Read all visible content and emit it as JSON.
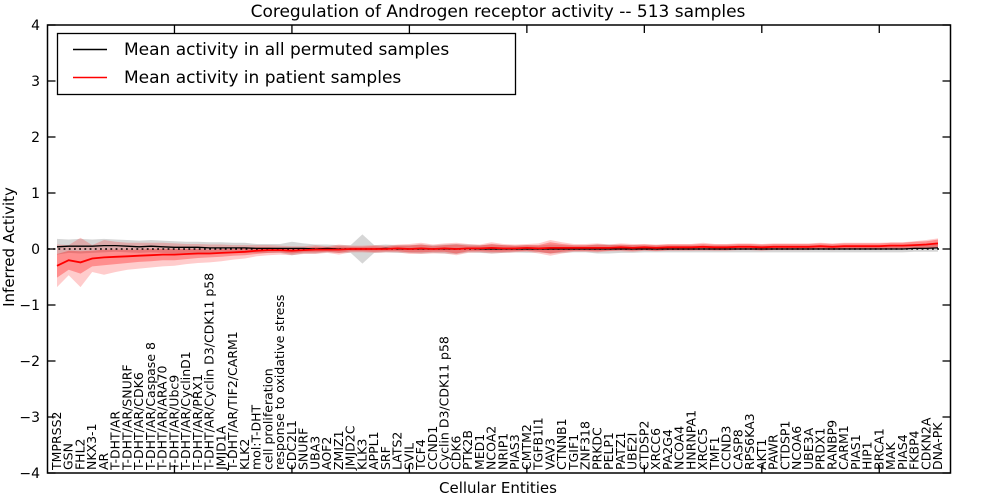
{
  "title": "Coregulation of Androgen receptor activity -- 513 samples",
  "colors": {
    "permuted_line": "#000000",
    "patient_line": "#ff0000",
    "permuted_band": "#000000",
    "patient_band": "#ff0000",
    "zero_line": "#000000",
    "background": "#ffffff"
  },
  "chart_data": {
    "type": "line",
    "title": "Coregulation of Androgen receptor activity -- 513 samples",
    "xlabel": "Cellular Entities",
    "ylabel": "Inferred Activity",
    "ylim": [
      -4,
      4
    ],
    "yticks": [
      4,
      3,
      2,
      1,
      0,
      -1,
      -2,
      -3,
      -4
    ],
    "grid": false,
    "legend_position": "upper left",
    "zero_reference_line": 0,
    "categories": [
      "TMPRSS2",
      "GSN",
      "FHL2",
      "NKX3-1",
      "AR",
      "T-DHT/AR",
      "T-DHT/AR/SNURF",
      "T-DHT/AR/CDK6",
      "T-DHT/AR/Caspase 8",
      "T-DHT/AR/ARA70",
      "T-DHT/AR/Ubc9",
      "T-DHT/AR/CyclinD1",
      "T-DHT/AR/PRX1",
      "T-DHT/AR/Cyclin D3/CDK11 p58",
      "JMJD1A",
      "T-DHT/AR/TIF2/CARM1",
      "KLK2",
      "mol:T-DHT",
      "cell proliferation",
      "response to oxidative stress",
      "CDC2L1",
      "SNURF",
      "UBA3",
      "AOF2",
      "ZMIZ1",
      "JMJD2C",
      "KLK3",
      "APPL1",
      "SRF",
      "LATS2",
      "SVIL",
      "TCF4",
      "CCND1",
      "Cyclin D3/CDK11 p58",
      "CDK6",
      "PTK2B",
      "MED1",
      "NCOA2",
      "NRIP1",
      "PIAS3",
      "CMTM2",
      "TGFB1I1",
      "VAV3",
      "CTNNB1",
      "TGIF1",
      "ZNF318",
      "PRKDC",
      "PELP1",
      "PATZ1",
      "UBE2I",
      "CTDSP2",
      "XRCC6",
      "PA2G4",
      "NCOA4",
      "HNRNPA1",
      "XRCC5",
      "TMF1",
      "CCND3",
      "CASP8",
      "RPS6KA3",
      "AKT1",
      "PAWR",
      "CTDSP1",
      "NCOA6",
      "UBE3A",
      "PRDX1",
      "RANBP9",
      "CARM1",
      "PIAS1",
      "HIP1",
      "BRCA1",
      "MAK",
      "PIAS4",
      "FKBP4",
      "CDKN2A",
      "DNA-PK"
    ],
    "series": [
      {
        "name": "Mean activity in all permuted samples",
        "color": "#000000",
        "values": [
          0.04,
          0.05,
          0.05,
          0.05,
          0.06,
          0.06,
          0.05,
          0.04,
          0.05,
          0.04,
          0.03,
          0.03,
          0.03,
          0.02,
          0.02,
          0.02,
          0.02,
          0.01,
          0.01,
          0.01,
          0.01,
          0.01,
          0.0,
          0.01,
          0.0,
          0.0,
          0.0,
          0.0,
          0.01,
          0.0,
          0.0,
          0.0,
          0.0,
          0.0,
          0.0,
          0.01,
          0.0,
          0.0,
          0.0,
          0.0,
          0.0,
          0.0,
          0.0,
          0.0,
          0.0,
          0.0,
          0.0,
          0.0,
          0.0,
          0.0,
          0.0,
          0.0,
          0.0,
          0.0,
          0.0,
          0.0,
          0.0,
          0.0,
          0.0,
          0.0,
          0.0,
          0.0,
          0.0,
          0.0,
          0.0,
          0.0,
          0.0,
          0.0,
          0.0,
          0.0,
          0.0,
          0.0,
          0.0,
          0.01,
          0.01,
          0.02
        ],
        "band_halfwidth": [
          0.14,
          0.12,
          0.13,
          0.12,
          0.12,
          0.11,
          0.11,
          0.11,
          0.11,
          0.11,
          0.11,
          0.1,
          0.1,
          0.1,
          0.1,
          0.09,
          0.09,
          0.08,
          0.08,
          0.08,
          0.12,
          0.09,
          0.08,
          0.07,
          0.07,
          0.07,
          0.26,
          0.07,
          0.07,
          0.07,
          0.07,
          0.08,
          0.07,
          0.08,
          0.09,
          0.07,
          0.07,
          0.08,
          0.07,
          0.06,
          0.07,
          0.06,
          0.08,
          0.07,
          0.06,
          0.06,
          0.08,
          0.08,
          0.07,
          0.07,
          0.06,
          0.06,
          0.06,
          0.06,
          0.06,
          0.06,
          0.06,
          0.06,
          0.06,
          0.06,
          0.06,
          0.06,
          0.06,
          0.06,
          0.06,
          0.06,
          0.06,
          0.06,
          0.06,
          0.06,
          0.06,
          0.06,
          0.06,
          0.06,
          0.06,
          0.07
        ],
        "band_opacity": 0.16
      },
      {
        "name": "Mean activity in patient samples",
        "color": "#ff0000",
        "values": [
          -0.3,
          -0.2,
          -0.24,
          -0.17,
          -0.15,
          -0.14,
          -0.13,
          -0.12,
          -0.11,
          -0.1,
          -0.1,
          -0.09,
          -0.08,
          -0.08,
          -0.07,
          -0.06,
          -0.05,
          -0.03,
          -0.02,
          -0.02,
          -0.03,
          -0.02,
          -0.01,
          -0.01,
          -0.01,
          0.0,
          0.0,
          0.0,
          0.0,
          0.01,
          0.0,
          0.01,
          0.0,
          0.01,
          0.0,
          0.01,
          0.01,
          0.02,
          0.01,
          0.01,
          0.02,
          0.01,
          0.02,
          0.02,
          0.02,
          0.02,
          0.02,
          0.02,
          0.03,
          0.02,
          0.03,
          0.02,
          0.03,
          0.03,
          0.03,
          0.04,
          0.03,
          0.03,
          0.04,
          0.04,
          0.03,
          0.04,
          0.04,
          0.04,
          0.04,
          0.05,
          0.04,
          0.05,
          0.05,
          0.05,
          0.05,
          0.06,
          0.06,
          0.07,
          0.08,
          0.1
        ],
        "band_inner_halfwidth": [
          0.21,
          0.17,
          0.2,
          0.14,
          0.14,
          0.13,
          0.12,
          0.11,
          0.11,
          0.1,
          0.1,
          0.09,
          0.08,
          0.07,
          0.07,
          0.06,
          0.06,
          0.06,
          0.05,
          0.04,
          0.05,
          0.04,
          0.05,
          0.04,
          0.06,
          0.04,
          0.04,
          0.05,
          0.04,
          0.05,
          0.06,
          0.07,
          0.05,
          0.06,
          0.08,
          0.05,
          0.05,
          0.07,
          0.06,
          0.05,
          0.05,
          0.06,
          0.1,
          0.07,
          0.05,
          0.05,
          0.06,
          0.05,
          0.05,
          0.05,
          0.05,
          0.05,
          0.05,
          0.05,
          0.05,
          0.05,
          0.05,
          0.05,
          0.05,
          0.05,
          0.05,
          0.05,
          0.05,
          0.05,
          0.05,
          0.05,
          0.05,
          0.05,
          0.05,
          0.05,
          0.05,
          0.05,
          0.05,
          0.06,
          0.06,
          0.07
        ],
        "band_outer_halfwidth": [
          0.38,
          0.27,
          0.44,
          0.24,
          0.31,
          0.27,
          0.24,
          0.23,
          0.22,
          0.21,
          0.2,
          0.18,
          0.17,
          0.16,
          0.15,
          0.13,
          0.12,
          0.1,
          0.09,
          0.08,
          0.08,
          0.07,
          0.08,
          0.06,
          0.09,
          0.06,
          0.06,
          0.07,
          0.06,
          0.07,
          0.09,
          0.1,
          0.08,
          0.09,
          0.11,
          0.08,
          0.07,
          0.1,
          0.08,
          0.07,
          0.07,
          0.09,
          0.14,
          0.1,
          0.07,
          0.07,
          0.08,
          0.06,
          0.07,
          0.07,
          0.06,
          0.06,
          0.06,
          0.06,
          0.06,
          0.07,
          0.06,
          0.06,
          0.06,
          0.06,
          0.06,
          0.06,
          0.06,
          0.06,
          0.06,
          0.06,
          0.06,
          0.06,
          0.06,
          0.06,
          0.06,
          0.06,
          0.06,
          0.07,
          0.08,
          0.09
        ],
        "band_inner_opacity": 0.3,
        "band_outer_opacity": 0.2
      }
    ]
  },
  "legend": {
    "entries": [
      {
        "label": "Mean activity in all permuted samples",
        "color": "#000000"
      },
      {
        "label": "Mean activity in patient samples",
        "color": "#ff0000"
      }
    ]
  }
}
